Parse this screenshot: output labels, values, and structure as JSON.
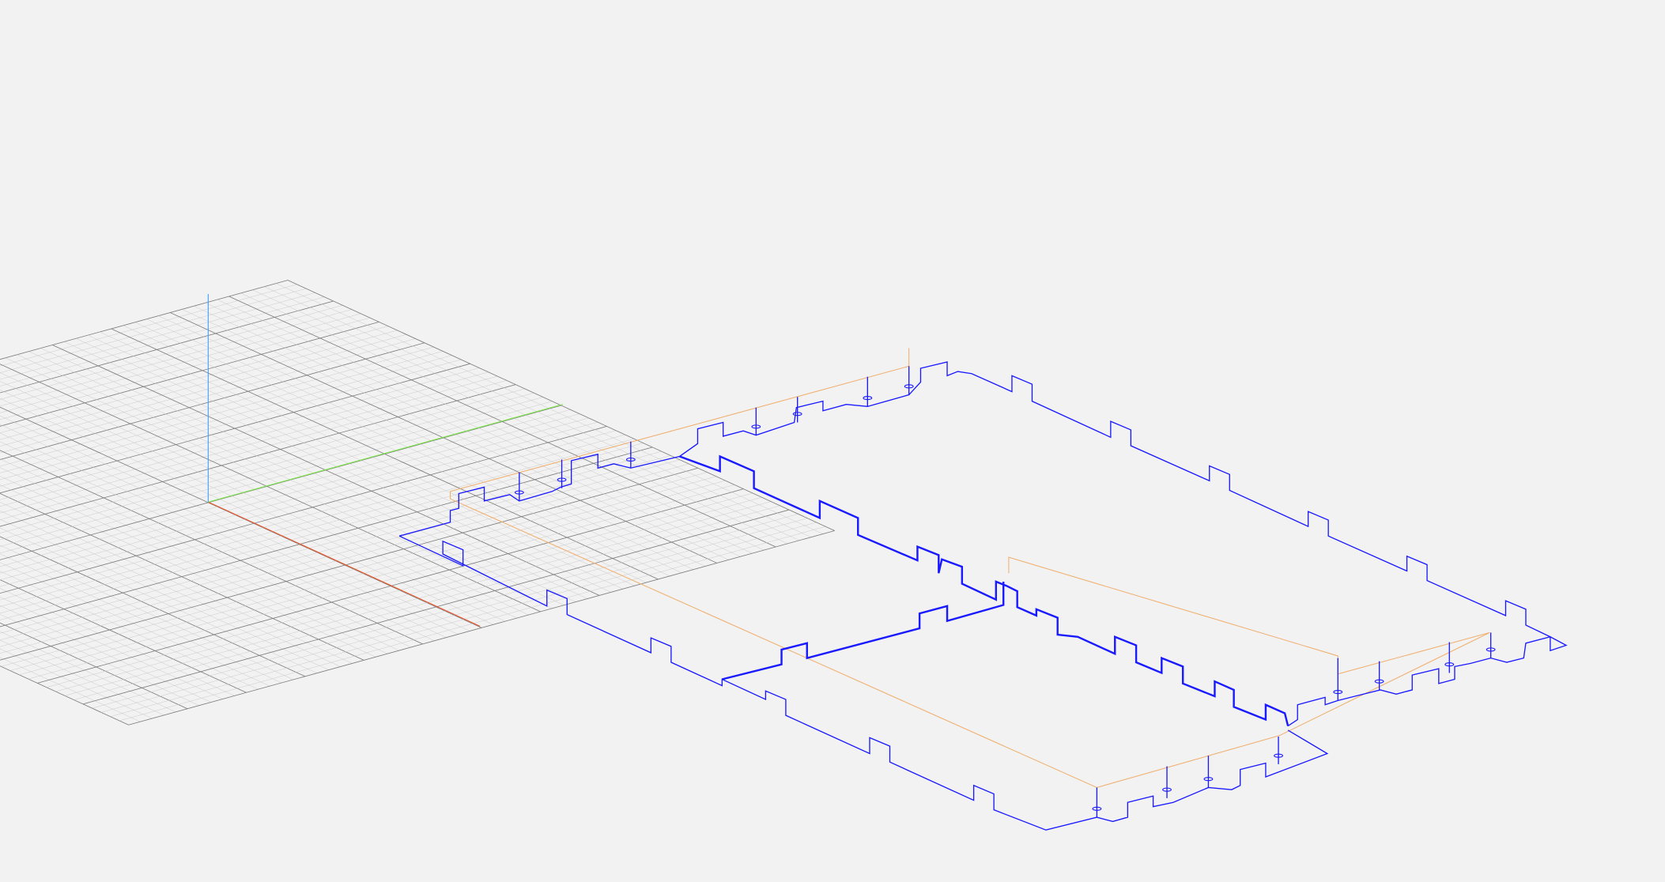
{
  "viewport": {
    "background_color": "#f2f2f2",
    "grid_minor_color": "#c8c8c8",
    "grid_major_color": "#7a7a7a",
    "axis_colors": {
      "x": "#e8572a",
      "y": "#7ee84a",
      "z": "#3aa0ff"
    },
    "toolpath_cut_color": "#1a1aff",
    "toolpath_rapid_color": "#f0b070",
    "plunge_color": "#8a3030"
  }
}
